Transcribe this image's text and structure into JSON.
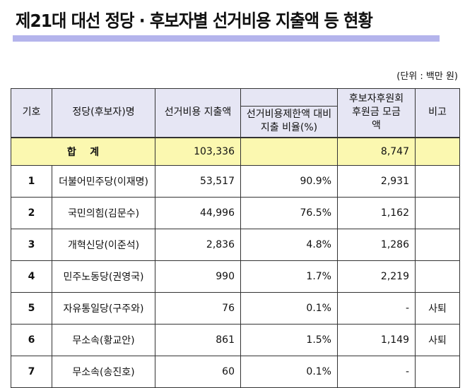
{
  "title": "제21대 대선 정당 · 후보자별 선거비용 지출액 등 현황",
  "unit": "(단위 : 백만 원)",
  "headers": {
    "no": "기호",
    "party": "정당(후보자)명",
    "expense": "선거비용 지출액",
    "ratio": "선거비용제한액 대비 지출 비율(%)",
    "donation": "후보자후원회 후원금 모금액",
    "note": "비고"
  },
  "total": {
    "label": "합    계",
    "expense": "103,336",
    "ratio": "",
    "donation": "8,747",
    "note": ""
  },
  "rows": [
    {
      "no": "1",
      "party": "더불어민주당(이재명)",
      "expense": "53,517",
      "ratio": "90.9%",
      "donation": "2,931",
      "note": ""
    },
    {
      "no": "2",
      "party": "국민의힘(김문수)",
      "expense": "44,996",
      "ratio": "76.5%",
      "donation": "1,162",
      "note": ""
    },
    {
      "no": "3",
      "party": "개혁신당(이준석)",
      "expense": "2,836",
      "ratio": "4.8%",
      "donation": "1,286",
      "note": ""
    },
    {
      "no": "4",
      "party": "민주노동당(권영국)",
      "expense": "990",
      "ratio": "1.7%",
      "donation": "2,219",
      "note": ""
    },
    {
      "no": "5",
      "party": "자유통일당(구주와)",
      "expense": "76",
      "ratio": "0.1%",
      "donation": "-",
      "note": "사퇴"
    },
    {
      "no": "6",
      "party": "무소속(황교안)",
      "expense": "861",
      "ratio": "1.5%",
      "donation": "1,149",
      "note": "사퇴"
    },
    {
      "no": "7",
      "party": "무소속(송진호)",
      "expense": "60",
      "ratio": "0.1%",
      "donation": "-",
      "note": ""
    }
  ],
  "colors": {
    "title_bar": "#b4b4ec",
    "header_bg": "#e6e6f4",
    "total_bg": "#fbf8b0"
  }
}
